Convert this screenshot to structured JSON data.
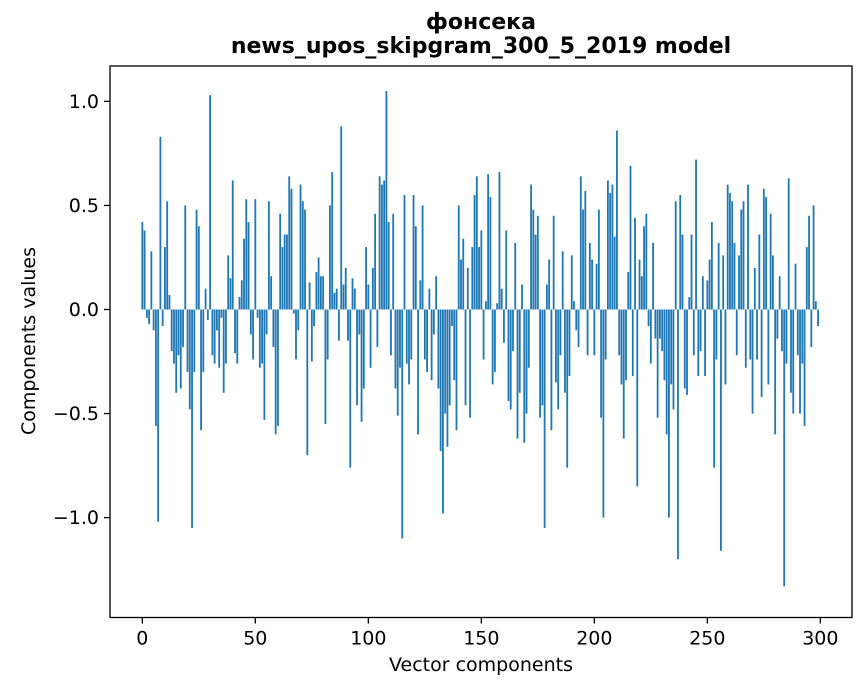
{
  "figure": {
    "title": "фонсека",
    "subtitle": "news_upos_skipgram_300_5_2019 model",
    "xlabel": "Vector components",
    "ylabel": "Components values"
  },
  "chart_data": {
    "type": "bar",
    "title": "фонсека",
    "subtitle": "news_upos_skipgram_300_5_2019 model",
    "xlabel": "Vector components",
    "ylabel": "Components values",
    "bar_color": "#1f77b4",
    "axis_color": "#000000",
    "background_color": "#ffffff",
    "grid": false,
    "legend": null,
    "x_start": 0,
    "n_bars": 300,
    "bar_width": 0.8,
    "x_ticks": [
      0,
      50,
      100,
      150,
      200,
      250,
      300
    ],
    "y_ticks": [
      1.0,
      0.5,
      0.0,
      -0.5,
      -1.0
    ],
    "xlim": [
      -14.3,
      314.0
    ],
    "ylim": [
      -1.48,
      1.17
    ],
    "values": [
      0.42,
      0.38,
      -0.04,
      -0.07,
      0.28,
      -0.1,
      -0.56,
      -1.02,
      0.83,
      -0.08,
      0.3,
      0.52,
      0.07,
      -0.2,
      -0.26,
      -0.4,
      -0.22,
      -0.38,
      -0.18,
      0.5,
      -0.3,
      -0.48,
      -1.05,
      -0.3,
      0.48,
      0.4,
      -0.58,
      -0.3,
      0.1,
      -0.05,
      1.03,
      -0.22,
      -0.26,
      -0.1,
      -0.28,
      -0.04,
      -0.4,
      -0.26,
      0.26,
      0.15,
      0.62,
      -0.21,
      -0.26,
      0.06,
      0.14,
      0.34,
      0.53,
      0.42,
      -0.12,
      -0.24,
      0.53,
      -0.04,
      -0.28,
      -0.26,
      -0.53,
      -0.12,
      0.52,
      0.16,
      -0.18,
      -0.6,
      -0.56,
      0.46,
      0.3,
      0.36,
      0.36,
      0.64,
      0.58,
      -0.02,
      -0.24,
      -0.1,
      0.6,
      0.52,
      0.48,
      -0.7,
      0.13,
      -0.25,
      -0.08,
      0.18,
      0.25,
      0.16,
      0.16,
      -0.55,
      -0.24,
      0.5,
      0.66,
      0.08,
      0.1,
      -0.15,
      0.88,
      0.12,
      0.2,
      -0.15,
      -0.76,
      0.15,
      0.1,
      -0.46,
      -0.12,
      -0.54,
      -0.38,
      0.3,
      0.12,
      -0.28,
      0.2,
      0.46,
      -0.18,
      0.64,
      0.6,
      0.62,
      1.05,
      0.42,
      -0.22,
      0.46,
      -0.38,
      -0.51,
      -0.28,
      -1.1,
      0.55,
      -0.26,
      -0.36,
      -0.24,
      0.55,
      0.4,
      -0.6,
      0.14,
      0.5,
      -0.24,
      -0.3,
      0.1,
      -0.34,
      -0.12,
      0.16,
      -0.38,
      -0.68,
      -0.98,
      -0.5,
      -0.66,
      -0.46,
      -0.08,
      -0.34,
      -0.58,
      0.5,
      0.24,
      0.34,
      -0.46,
      0.2,
      -0.52,
      0.3,
      0.55,
      0.64,
      0.3,
      0.38,
      -0.24,
      0.04,
      0.65,
      0.54,
      -0.36,
      -0.3,
      0.03,
      0.66,
      0.1,
      -0.16,
      0.38,
      -0.44,
      -0.48,
      -0.2,
      0.32,
      -0.62,
      -0.4,
      0.12,
      -0.64,
      -0.5,
      -0.28,
      0.6,
      0.48,
      0.36,
      0.45,
      -0.52,
      -0.46,
      -1.05,
      0.12,
      0.24,
      -0.58,
      0.45,
      -0.35,
      -0.48,
      -0.22,
      0.28,
      -0.4,
      -0.76,
      -0.32,
      0.26,
      0.04,
      -0.1,
      -0.18,
      0.64,
      0.48,
      0.57,
      -0.22,
      0.32,
      0.24,
      -0.22,
      0.22,
      0.48,
      -0.52,
      -1.0,
      -0.24,
      0.62,
      0.56,
      0.6,
      0.35,
      0.86,
      -0.22,
      -0.36,
      -0.62,
      -0.34,
      0.18,
      0.69,
      -0.32,
      0.44,
      -0.85,
      0.24,
      0.16,
      0.4,
      0.46,
      -0.08,
      -0.26,
      0.32,
      -0.14,
      -0.52,
      -0.14,
      -0.2,
      -0.34,
      -0.6,
      -1.0,
      -0.36,
      -0.48,
      0.52,
      -1.2,
      0.55,
      0.36,
      -0.38,
      -0.41,
      0.06,
      0.36,
      -0.22,
      0.72,
      -0.32,
      -0.2,
      0.16,
      -0.32,
      0.14,
      0.24,
      0.42,
      -0.76,
      -0.24,
      0.32,
      -1.16,
      0.26,
      -0.36,
      0.6,
      0.56,
      0.52,
      0.32,
      -0.22,
      0.26,
      0.48,
      0.52,
      -0.28,
      0.6,
      -0.24,
      -0.5,
      0.2,
      -0.24,
      0.36,
      -0.42,
      0.58,
      0.54,
      -0.36,
      0.46,
      0.26,
      -0.6,
      -0.14,
      0.16,
      -0.2,
      -1.33,
      -0.26,
      0.63,
      -0.4,
      -0.5,
      0.22,
      -0.22,
      -0.5,
      -0.26,
      -0.56,
      0.3,
      0.45,
      -0.18,
      0.5,
      0.04,
      -0.08
    ]
  }
}
